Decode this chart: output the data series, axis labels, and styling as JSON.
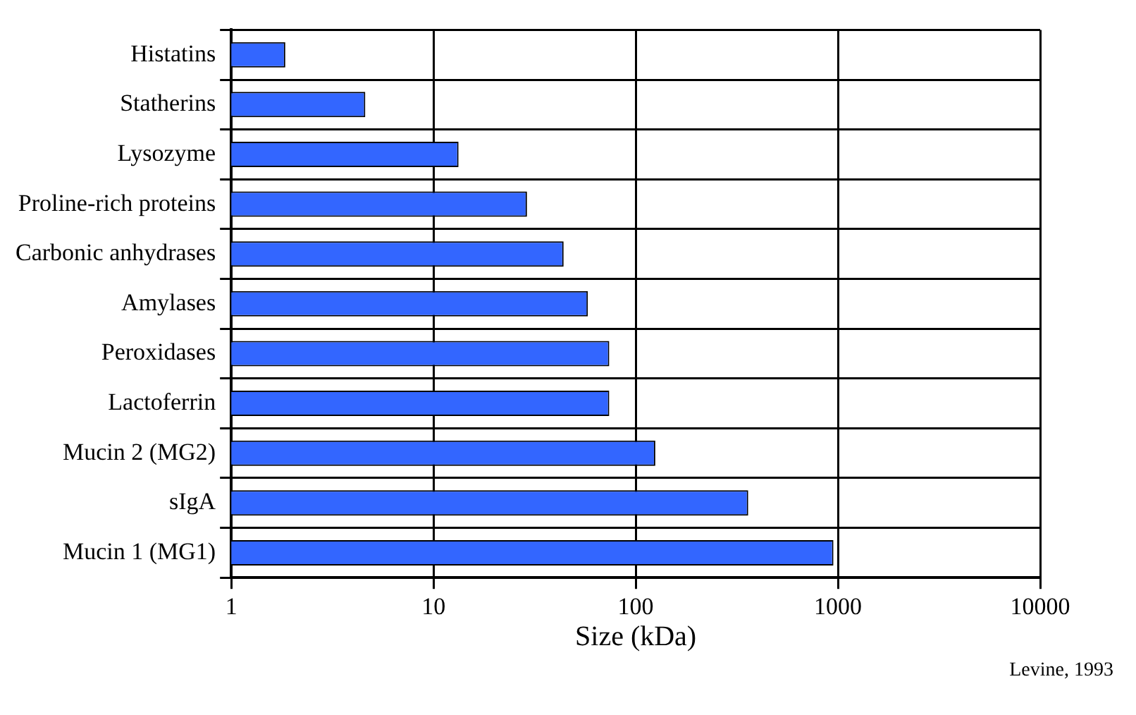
{
  "chart_data": {
    "type": "bar",
    "orientation": "horizontal",
    "log": "x",
    "xlabel": "Size (kDa)",
    "categories": [
      "Histatins",
      "Statherins",
      "Lysozyme",
      "Proline-rich proteins",
      "Carbonic anhydrases",
      "Amylases",
      "Peroxidases",
      "Lactoferrin",
      "Mucin 2 (MG2)",
      "sIgA",
      "Mucin 1 (MG1)"
    ],
    "values": [
      1.85,
      4.6,
      13.3,
      29,
      44,
      58,
      74,
      74,
      125,
      360,
      950
    ],
    "color": "#3366ff",
    "xlim": [
      1,
      10000
    ],
    "xticks": [
      1,
      10,
      100,
      1000,
      10000
    ],
    "grid": true,
    "legend": false,
    "annotations": [
      "Levine, 1993"
    ]
  }
}
